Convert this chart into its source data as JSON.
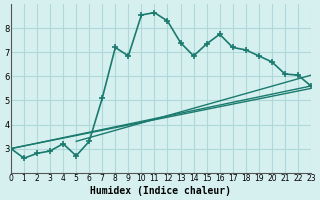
{
  "xlabel": "Humidex (Indice chaleur)",
  "background_color": "#d6f0f0",
  "grid_color": "#b0d8d8",
  "line_color": "#1a7a6e",
  "xlim": [
    0,
    23
  ],
  "ylim": [
    2,
    9
  ],
  "yticks": [
    3,
    4,
    5,
    6,
    7,
    8
  ],
  "xticks": [
    0,
    1,
    2,
    3,
    4,
    5,
    6,
    7,
    8,
    9,
    10,
    11,
    12,
    13,
    14,
    15,
    16,
    17,
    18,
    19,
    20,
    21,
    22,
    23
  ],
  "line1_x": [
    0,
    1,
    2,
    3,
    4,
    5,
    6,
    7,
    8,
    9,
    10,
    11,
    12,
    13,
    14,
    15,
    16,
    17,
    18,
    19,
    20,
    21,
    22,
    23
  ],
  "line1_y": [
    3.0,
    2.6,
    2.8,
    2.9,
    3.2,
    2.7,
    3.3,
    5.1,
    7.2,
    6.85,
    8.55,
    8.65,
    8.3,
    7.4,
    6.85,
    7.35,
    7.75,
    7.2,
    7.1,
    6.85,
    6.6,
    6.1,
    6.05,
    5.6
  ],
  "line2_x": [
    0,
    23
  ],
  "line2_y": [
    3.0,
    5.5
  ],
  "line3_x": [
    0,
    23
  ],
  "line3_y": [
    3.0,
    5.6
  ],
  "line4_x": [
    5,
    23
  ],
  "line4_y": [
    3.3,
    6.05
  ]
}
